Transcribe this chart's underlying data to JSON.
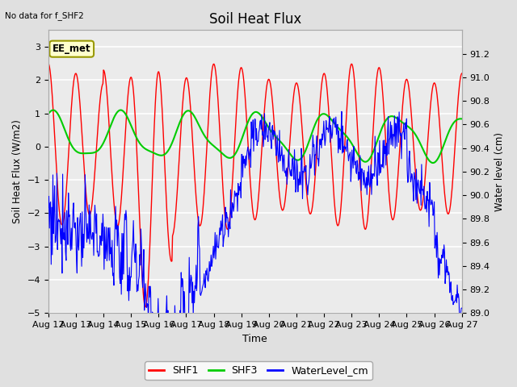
{
  "title": "Soil Heat Flux",
  "top_left_text": "No data for f_SHF2",
  "annotation_text": "EE_met",
  "xlabel": "Time",
  "ylabel_left": "Soil Heat Flux (W/m2)",
  "ylabel_right": "Water level (cm)",
  "ylim_left": [
    -5.0,
    3.5
  ],
  "ylim_right": [
    89.0,
    91.4
  ],
  "yticks_left": [
    -5.0,
    -4.0,
    -3.0,
    -2.0,
    -1.0,
    0.0,
    1.0,
    2.0,
    3.0
  ],
  "yticks_right": [
    89.0,
    89.2,
    89.4,
    89.6,
    89.8,
    90.0,
    90.2,
    90.4,
    90.6,
    90.8,
    91.0,
    91.2
  ],
  "xtick_days": [
    12,
    13,
    14,
    15,
    16,
    17,
    18,
    19,
    20,
    21,
    22,
    23,
    24,
    25,
    26,
    27
  ],
  "shf1_color": "#ff0000",
  "shf3_color": "#00cc00",
  "water_color": "#0000ff",
  "fig_bg_color": "#e0e0e0",
  "plot_bg_color": "#ebebeb",
  "legend_entries": [
    "SHF1",
    "SHF3",
    "WaterLevel_cm"
  ],
  "annotation_box_color": "#ffffcc",
  "annotation_box_edge": "#999900",
  "grid_color": "#ffffff",
  "figsize": [
    6.4,
    4.8
  ],
  "dpi": 100
}
